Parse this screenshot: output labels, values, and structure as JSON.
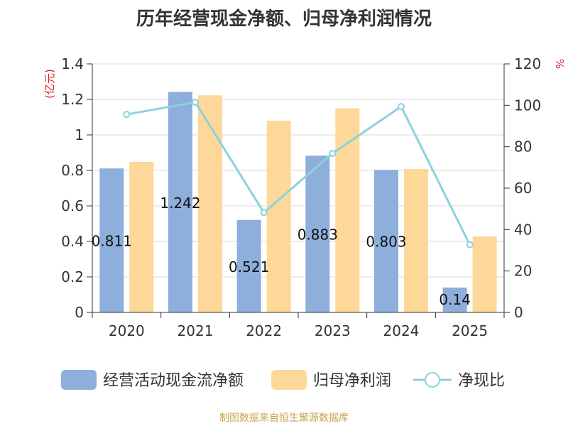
{
  "chart_data": {
    "type": "bar",
    "title": "历年经营现金净额、归母净利润情况",
    "categories": [
      "2020",
      "2021",
      "2022",
      "2023",
      "2024",
      "2025"
    ],
    "series": [
      {
        "name": "经营活动现金流净额",
        "type": "bar",
        "axis": "left",
        "color": "#8eaedb",
        "values": [
          0.811,
          1.242,
          0.521,
          0.883,
          0.803,
          0.14
        ],
        "data_labels": [
          "0.811",
          "1.242",
          "0.521",
          "0.883",
          "0.803",
          "0.14"
        ]
      },
      {
        "name": "归母净利润",
        "type": "bar",
        "axis": "left",
        "color": "#fed898",
        "values": [
          0.848,
          1.223,
          1.08,
          1.15,
          0.808,
          0.428
        ]
      },
      {
        "name": "净现比",
        "type": "line",
        "axis": "right",
        "color": "#8ad3dc",
        "values": [
          95.6,
          101.5,
          48.2,
          76.8,
          99.4,
          32.7
        ]
      }
    ],
    "ylabel": "(亿元)",
    "y2label": "%",
    "ylim": [
      0,
      1.4
    ],
    "y2lim": [
      0,
      120
    ],
    "yticks": [
      "0",
      "0.2",
      "0.4",
      "0.6",
      "0.8",
      "1",
      "1.2",
      "1.4"
    ],
    "y2ticks": [
      "0",
      "20",
      "40",
      "60",
      "80",
      "100",
      "120"
    ],
    "grid": true,
    "legend_position": "bottom"
  },
  "source_text": "制图数据来自恒生聚源数据库"
}
